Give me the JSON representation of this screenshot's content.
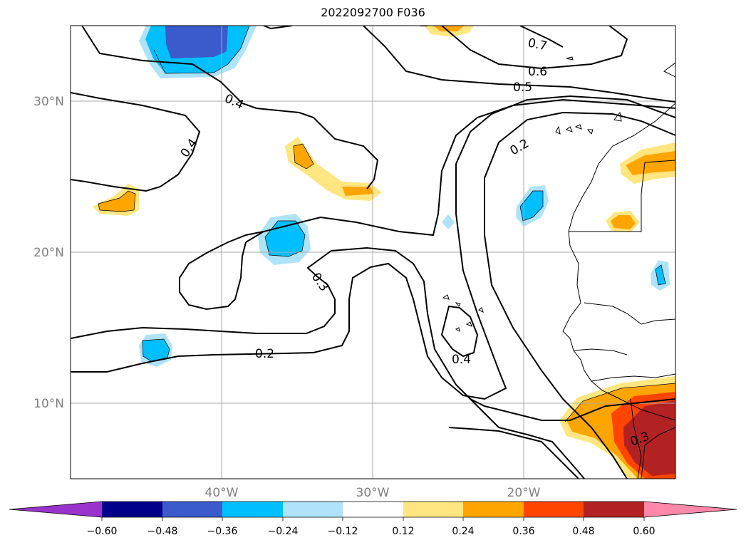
{
  "title": "2022092700 F036",
  "map": {
    "lat_labels": [
      "30°N",
      "20°N",
      "10°N"
    ],
    "lon_labels": [
      "40°W",
      "30°W",
      "20°W"
    ],
    "contour_labels": [
      "0.7",
      "0.6",
      "0.5",
      "0.4",
      "0.4",
      "0.2",
      "0.3",
      "0.2",
      "0.4",
      "0.3"
    ]
  },
  "colorbar": {
    "ticks": [
      "−0.60",
      "−0.48",
      "−0.36",
      "−0.24",
      "−0.12",
      "0.12",
      "0.24",
      "0.36",
      "0.48",
      "0.60"
    ],
    "colors": [
      "#9933cc",
      "#00008b",
      "#3b5bcc",
      "#00bfff",
      "#aee3fa",
      "#ffffff",
      "#ffe680",
      "#ffa500",
      "#ff4500",
      "#b22222",
      "#ff88aa"
    ]
  }
}
